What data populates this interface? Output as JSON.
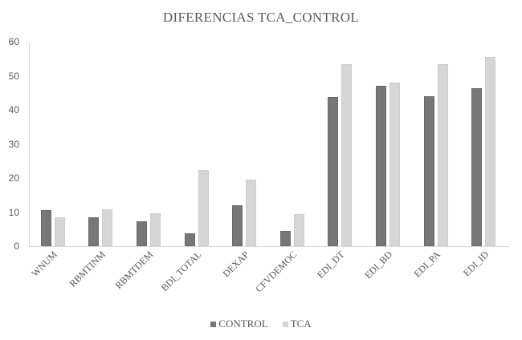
{
  "chart_data": {
    "type": "bar",
    "title": "DIFERENCIAS  TCA_CONTROL",
    "xlabel": "",
    "ylabel": "",
    "ylim": [
      0,
      60
    ],
    "yticks": [
      0,
      10,
      20,
      30,
      40,
      50,
      60
    ],
    "grid": false,
    "legend_position": "bottom",
    "categories": [
      "WNUM",
      "RBMTINM",
      "RBMTDEM",
      "BDI_TOTAL",
      "DEXAP",
      "CFVDEMOC",
      "EDI_DT",
      "EDI_BD",
      "EDI_PA",
      "EDI_ID"
    ],
    "series": [
      {
        "name": "CONTROL",
        "color": "#777777",
        "values": [
          10.6,
          8.5,
          7.3,
          3.8,
          11.9,
          4.4,
          43.7,
          47.0,
          43.9,
          46.4
        ]
      },
      {
        "name": "TCA",
        "color": "#d6d6d6",
        "values": [
          8.5,
          10.8,
          9.7,
          22.4,
          19.5,
          9.4,
          53.4,
          48.0,
          53.4,
          55.5
        ]
      }
    ]
  }
}
